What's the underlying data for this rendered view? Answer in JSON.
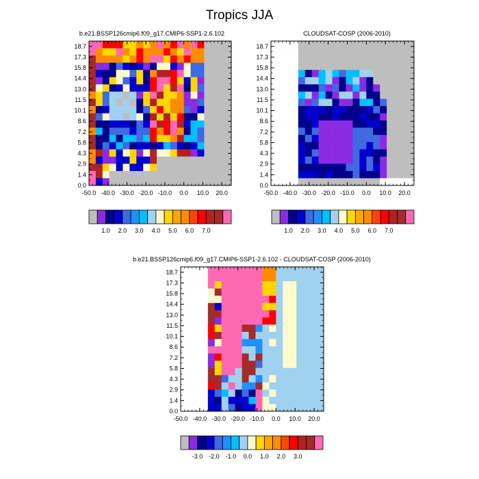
{
  "figure_title": "Tropics JJA",
  "chart_data": [
    {
      "type": "heatmap",
      "title": "b.e21.BSSP126cmip6.f09_g17.CMIP6-SSP1-2.6.102",
      "x_ticks": [
        "-50.0",
        "-40.0",
        "-30.0",
        "-20.0",
        "-10.0",
        "0.0",
        "10.0",
        "20.0"
      ],
      "y_ticks": [
        "0.0",
        "1.4",
        "2.9",
        "4.3",
        "5.8",
        "7.2",
        "8.6",
        "10.1",
        "11.5",
        "13.0",
        "14.4",
        "15.8",
        "17.3",
        "18.7"
      ],
      "colorbar_labels": [
        "1.0",
        "2.0",
        "3.0",
        "4.0",
        "5.0",
        "6.0",
        "7.0"
      ],
      "colors": {
        "missing": "#bebebe",
        "levels": [
          "#8a2be2",
          "#00008b",
          "#0000cd",
          "#4169e1",
          "#1e90ff",
          "#00bfff",
          "#a0d2f0",
          "#fffacd",
          "#ffd700",
          "#ffa500",
          "#ff8c00",
          "#ff4500",
          "#ff0000",
          "#b22222",
          "#a52a2a",
          "#ff69b4"
        ]
      }
    },
    {
      "type": "heatmap",
      "title": "CLOUDSAT-COSP (2006-2010)",
      "x_ticks": [
        "-50.0",
        "-40.0",
        "-30.0",
        "-20.0",
        "-10.0",
        "0.0",
        "10.0",
        "20.0"
      ],
      "y_ticks": [
        "0.0",
        "1.4",
        "2.9",
        "4.3",
        "5.8",
        "7.2",
        "8.6",
        "10.1",
        "11.5",
        "13.0",
        "14.4",
        "15.8",
        "17.3",
        "18.7"
      ],
      "colorbar_labels": [
        "1.0",
        "2.0",
        "3.0",
        "4.0",
        "5.0",
        "6.0",
        "7.0"
      ]
    },
    {
      "type": "heatmap",
      "title": "b.e21.BSSP126cmip6.f09_g17.CMIP6-SSP1-2.6.102 - CLOUDSAT-COSP (2006-2010)",
      "x_ticks": [
        "-50.0",
        "-40.0",
        "-30.0",
        "-20.0",
        "-10.0",
        "0.0",
        "10.0",
        "20.0"
      ],
      "y_ticks": [
        "0.0",
        "1.4",
        "2.9",
        "4.3",
        "5.8",
        "7.2",
        "8.6",
        "10.1",
        "11.5",
        "13.0",
        "14.4",
        "15.8",
        "17.3",
        "18.7"
      ],
      "colorbar_labels": [
        "-3.0",
        "-2.0",
        "-1.0",
        "0.0",
        "1.0",
        "2.0",
        "3.0"
      ],
      "colors": {
        "missing": "#bebebe",
        "levels": [
          "#8a2be2",
          "#00008b",
          "#0000cd",
          "#4169e1",
          "#1e90ff",
          "#00bfff",
          "#a0d2f0",
          "#fffacd",
          "#ffd700",
          "#ffa500",
          "#ff8c00",
          "#ff4500",
          "#ff0000",
          "#b22222",
          "#a52a2a",
          "#ff69b4"
        ]
      }
    }
  ]
}
